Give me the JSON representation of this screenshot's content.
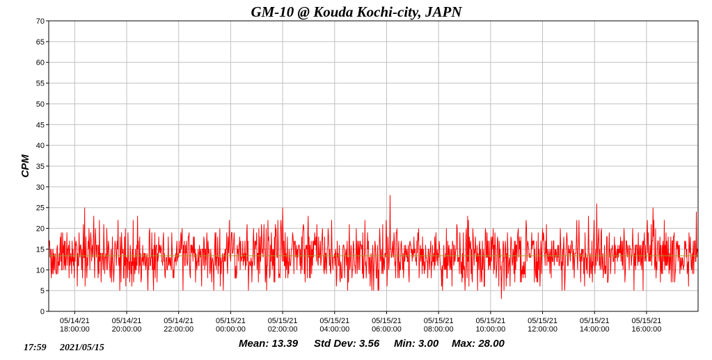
{
  "chart_data": {
    "type": "line",
    "title": "GM-10 @ Kouda Kochi-city, JAPN",
    "ylabel": "CPM",
    "xlabel": "",
    "ylim": [
      0,
      70
    ],
    "yticks": [
      0,
      5,
      10,
      15,
      20,
      25,
      30,
      35,
      40,
      45,
      50,
      55,
      60,
      65,
      70
    ],
    "x_range": [
      "05/14/21 17:00",
      "05/15/21 17:59"
    ],
    "xticks": [
      {
        "date": "05/14/21",
        "time": "18:00:00"
      },
      {
        "date": "05/14/21",
        "time": "20:00:00"
      },
      {
        "date": "05/14/21",
        "time": "22:00:00"
      },
      {
        "date": "05/15/21",
        "time": "00:00:00"
      },
      {
        "date": "05/15/21",
        "time": "02:00:00"
      },
      {
        "date": "05/15/21",
        "time": "04:00:00"
      },
      {
        "date": "05/15/21",
        "time": "06:00:00"
      },
      {
        "date": "05/15/21",
        "time": "08:00:00"
      },
      {
        "date": "05/15/21",
        "time": "10:00:00"
      },
      {
        "date": "05/15/21",
        "time": "12:00:00"
      },
      {
        "date": "05/15/21",
        "time": "14:00:00"
      },
      {
        "date": "05/15/21",
        "time": "16:00:00"
      }
    ],
    "grid": true,
    "series": [
      {
        "name": "",
        "color": "#ff0000",
        "interval_minutes": 1,
        "mean": 13.39,
        "std": 3.56,
        "min": 3,
        "max": 28,
        "notable_points": [
          {
            "time": "05/14/21 18:23",
            "value": 25
          },
          {
            "time": "05/15/21 02:00",
            "value": 25
          },
          {
            "time": "05/15/21 06:08",
            "value": 28
          },
          {
            "time": "05/15/21 10:25",
            "value": 3
          },
          {
            "time": "05/15/21 14:05",
            "value": 26
          },
          {
            "time": "05/15/21 16:15",
            "value": 25
          },
          {
            "time": "05/15/21 17:55",
            "value": 24
          }
        ]
      }
    ],
    "mean_line": {
      "value": 13.39,
      "color": "#a0a020"
    }
  },
  "stats": {
    "mean_text": "Mean: 13.39",
    "std_text": "Std Dev: 3.56",
    "min_text": "Min: 3.00",
    "max_text": "Max: 28.00"
  },
  "timestamp": {
    "time": "17:59",
    "date": "2021/05/15"
  }
}
